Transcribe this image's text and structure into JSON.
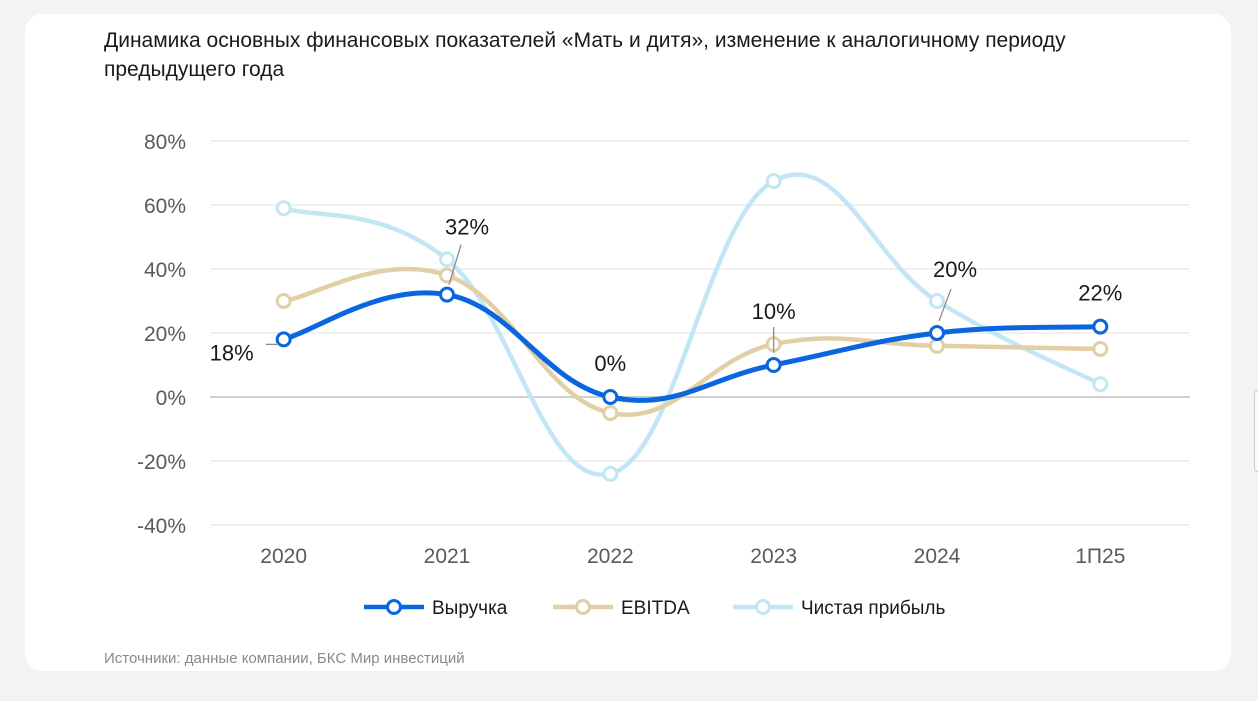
{
  "chart_data": {
    "type": "line",
    "title": "Динамика основных финансовых показателей «Мать и дитя», изменение к аналогичному периоду предыдущего года",
    "categories": [
      "2020",
      "2021",
      "2022",
      "2023",
      "2024",
      "1П25"
    ],
    "ylim": [
      -40,
      80
    ],
    "yticks": [
      -40,
      -20,
      0,
      20,
      40,
      60,
      80
    ],
    "ytick_labels": [
      "-40%",
      "-20%",
      "0%",
      "20%",
      "40%",
      "60%",
      "80%"
    ],
    "grid": true,
    "smooth": true,
    "legend_position": "bottom",
    "series": [
      {
        "name": "Выручка",
        "color": "#0a66e0",
        "values": [
          18,
          32,
          0,
          10,
          20,
          22
        ],
        "data_labels": [
          "18%",
          "32%",
          "0%",
          "10%",
          "20%",
          "22%"
        ]
      },
      {
        "name": "EBITDA",
        "color": "#e2cfa5",
        "values": [
          30,
          38,
          -5,
          16.5,
          16,
          15
        ]
      },
      {
        "name": "Чистая прибыль",
        "color": "#c3e6f5",
        "values": [
          59,
          43,
          -24,
          67.5,
          30,
          4
        ]
      }
    ]
  },
  "source": "Источники: данные компании, БКС Мир инвестиций"
}
